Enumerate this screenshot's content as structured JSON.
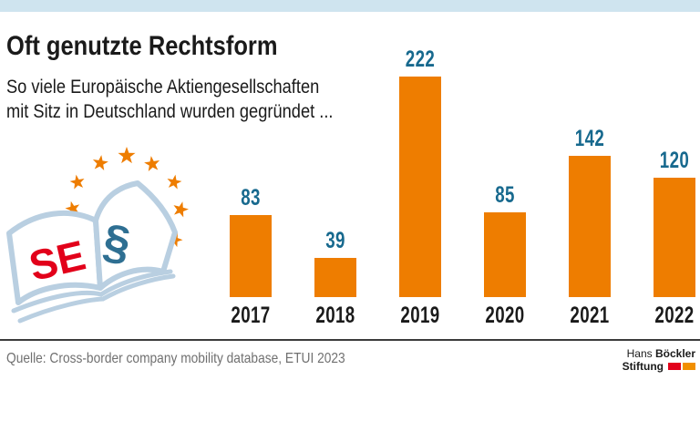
{
  "colors": {
    "bar_orange": "#ee7d00",
    "label_blue": "#17698e",
    "strip_blue": "#cfe4ef",
    "text_black": "#1a1a1a",
    "source_gray": "#707070",
    "divider_gray": "#3c3c3c",
    "book_outline": "#b9cfe1",
    "se_red": "#e2001a",
    "paragraph_blue": "#2e6f92",
    "logo_red": "#e2001a",
    "logo_orange": "#f18f00"
  },
  "header": {
    "title": "Oft genutzte Rechtsform",
    "subtitle_line1": "So viele Europäische Aktiengesellschaften",
    "subtitle_line2": "mit Sitz in Deutschland wurden gegründet ..."
  },
  "chart_data": {
    "type": "bar",
    "categories": [
      "2017",
      "2018",
      "2019",
      "2020",
      "2021",
      "2022"
    ],
    "values": [
      83,
      39,
      222,
      85,
      142,
      120
    ],
    "title": "Oft genutzte Rechtsform",
    "subtitle": "So viele Europäische Aktiengesellschaften mit Sitz in Deutschland wurden gegründet ...",
    "xlabel": "",
    "ylabel": "",
    "ylim": [
      0,
      222
    ],
    "grid": false,
    "legend": false,
    "value_labels_shown": true,
    "bar_color": "#ee7d00",
    "value_label_color": "#17698e"
  },
  "illustration": {
    "name": "open-law-book-with-eu-stars",
    "left_page_text": "SE",
    "right_page_text": "§",
    "star_count": 8
  },
  "footer": {
    "source": "Quelle: Cross-border company mobility database, ETUI 2023",
    "logo": {
      "line1_regular": "Hans",
      "line1_bold": "Böckler",
      "line2_bold": "Stiftung"
    }
  }
}
